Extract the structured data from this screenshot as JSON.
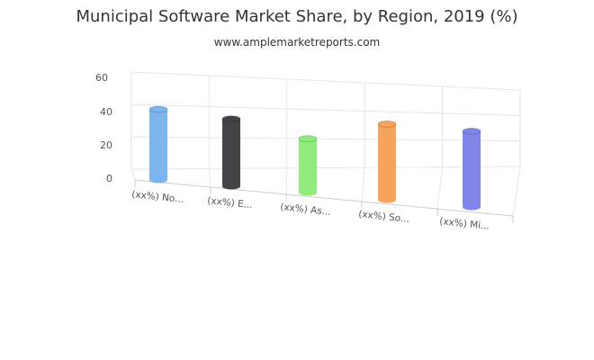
{
  "chart_data": {
    "type": "bar",
    "title": "Municipal Software Market Share, by Region, 2019 (%)",
    "subtitle": "www.amplemarketreports.com",
    "categories": [
      "(xx%) No...",
      "(xx%) E...",
      "(xx%) As...",
      "(xx%) So...",
      "(xx%) Mi..."
    ],
    "values": [
      42,
      40,
      32,
      45,
      45
    ],
    "colors": [
      "#7cb5ec",
      "#434348",
      "#90ed7d",
      "#f7a35c",
      "#8085e9"
    ],
    "yticks": [
      0,
      20,
      40,
      60
    ],
    "ylim": [
      0,
      60
    ],
    "grid": true,
    "legend": "none"
  }
}
